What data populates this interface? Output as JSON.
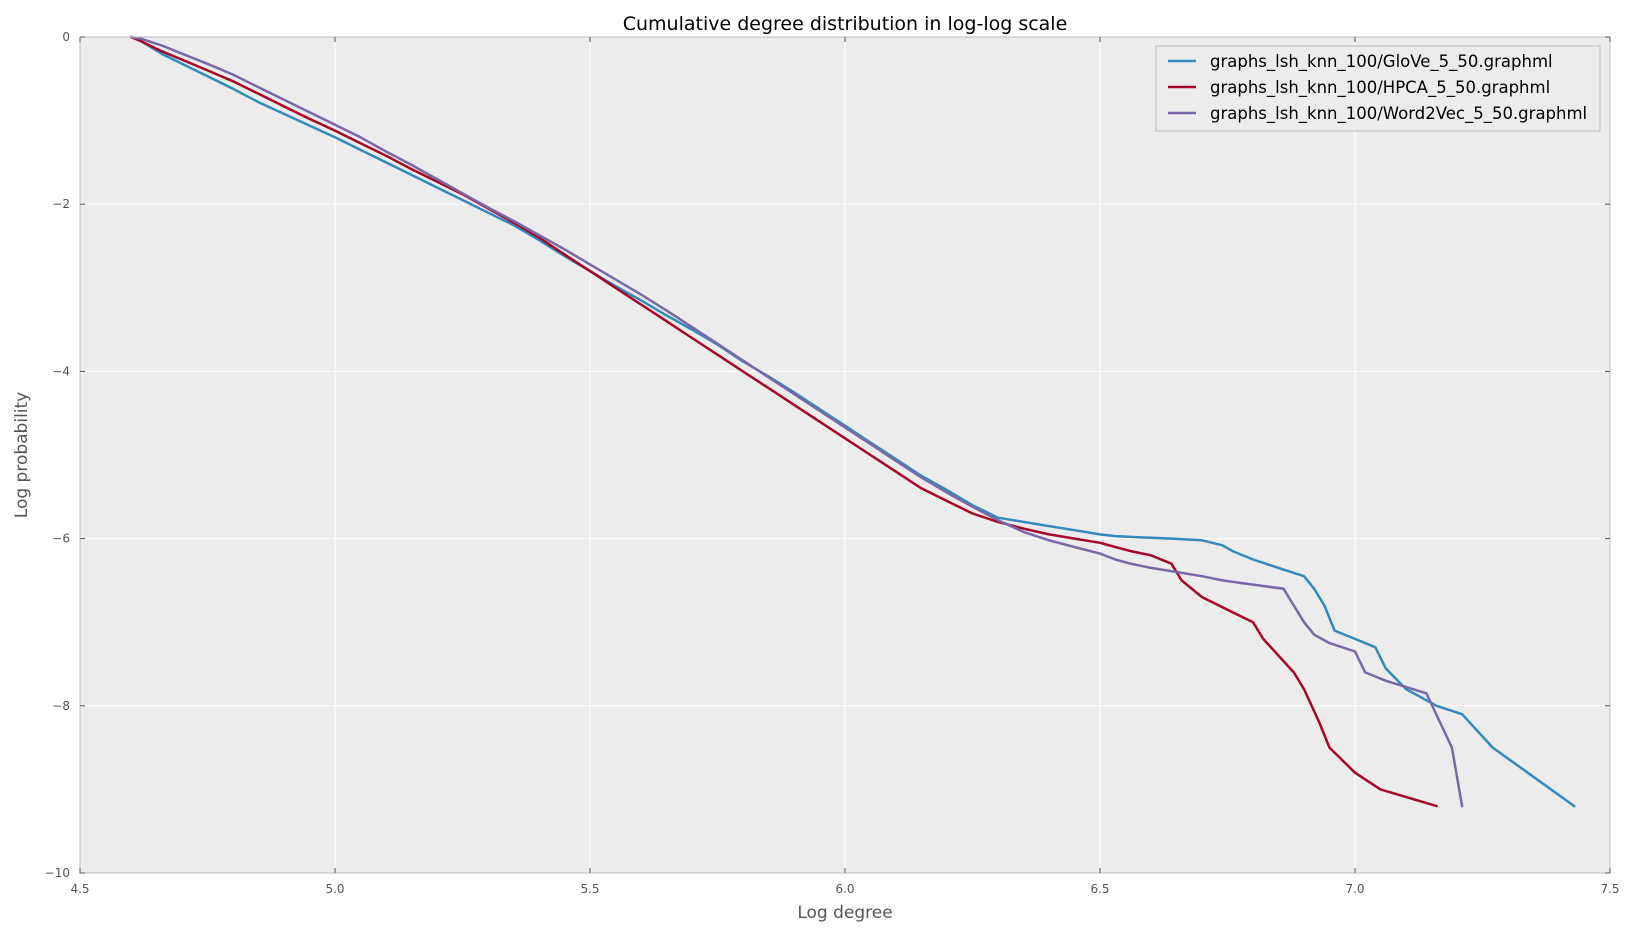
{
  "chart_data": {
    "type": "line",
    "title": "Cumulative degree distribution in log-log scale",
    "xlabel": "Log degree",
    "ylabel": "Log probability",
    "xlim": [
      4.5,
      7.5
    ],
    "ylim": [
      -10,
      0
    ],
    "xticks": [
      "4.5",
      "5.0",
      "5.5",
      "6.0",
      "6.5",
      "7.0",
      "7.5"
    ],
    "yticks": [
      "0",
      "−2",
      "−4",
      "−6",
      "−8",
      "−10"
    ],
    "grid": true,
    "background": "#ececec",
    "legend_position": "top-right",
    "series": [
      {
        "name": "graphs_lsh_knn_100/GloVe_5_50.graphml",
        "color": "#348abd",
        "x": [
          4.6,
          4.62,
          4.66,
          4.7,
          4.75,
          4.8,
          4.85,
          4.9,
          4.95,
          5.0,
          5.05,
          5.1,
          5.15,
          5.2,
          5.25,
          5.3,
          5.35,
          5.4,
          5.45,
          5.5,
          5.55,
          5.6,
          5.65,
          5.7,
          5.75,
          5.8,
          5.85,
          5.9,
          5.95,
          6.0,
          6.05,
          6.1,
          6.15,
          6.2,
          6.25,
          6.3,
          6.35,
          6.4,
          6.45,
          6.5,
          6.53,
          6.56,
          6.6,
          6.64,
          6.7,
          6.74,
          6.76,
          6.8,
          6.85,
          6.9,
          6.92,
          6.94,
          6.96,
          7.0,
          7.04,
          7.06,
          7.1,
          7.16,
          7.21,
          7.27,
          7.43
        ],
        "y": [
          0,
          -0.05,
          -0.2,
          -0.32,
          -0.47,
          -0.62,
          -0.78,
          -0.92,
          -1.06,
          -1.2,
          -1.35,
          -1.5,
          -1.65,
          -1.8,
          -1.95,
          -2.1,
          -2.25,
          -2.43,
          -2.62,
          -2.8,
          -2.98,
          -3.15,
          -3.33,
          -3.5,
          -3.68,
          -3.88,
          -4.06,
          -4.25,
          -4.45,
          -4.65,
          -4.85,
          -5.05,
          -5.25,
          -5.42,
          -5.6,
          -5.75,
          -5.8,
          -5.85,
          -5.9,
          -5.95,
          -5.97,
          -5.98,
          -5.99,
          -6.0,
          -6.02,
          -6.08,
          -6.15,
          -6.25,
          -6.35,
          -6.45,
          -6.6,
          -6.8,
          -7.1,
          -7.2,
          -7.3,
          -7.55,
          -7.8,
          -8.0,
          -8.1,
          -8.5,
          -9.2
        ]
      },
      {
        "name": "graphs_lsh_knn_100/HPCA_5_50.graphml",
        "color": "#a60628",
        "x": [
          4.6,
          4.62,
          4.66,
          4.7,
          4.75,
          4.8,
          4.85,
          4.9,
          4.95,
          5.0,
          5.05,
          5.1,
          5.15,
          5.2,
          5.25,
          5.3,
          5.35,
          5.4,
          5.45,
          5.5,
          5.55,
          5.6,
          5.65,
          5.7,
          5.75,
          5.8,
          5.85,
          5.9,
          5.95,
          6.0,
          6.05,
          6.1,
          6.15,
          6.2,
          6.25,
          6.3,
          6.35,
          6.4,
          6.45,
          6.5,
          6.53,
          6.56,
          6.6,
          6.64,
          6.66,
          6.7,
          6.75,
          6.8,
          6.82,
          6.85,
          6.88,
          6.9,
          6.93,
          6.95,
          7.0,
          7.05,
          7.16
        ],
        "y": [
          0,
          -0.05,
          -0.17,
          -0.27,
          -0.4,
          -0.53,
          -0.68,
          -0.83,
          -0.98,
          -1.12,
          -1.27,
          -1.42,
          -1.58,
          -1.73,
          -1.88,
          -2.05,
          -2.22,
          -2.4,
          -2.6,
          -2.8,
          -3.0,
          -3.2,
          -3.4,
          -3.6,
          -3.8,
          -4.0,
          -4.2,
          -4.4,
          -4.6,
          -4.8,
          -5.0,
          -5.2,
          -5.4,
          -5.55,
          -5.7,
          -5.8,
          -5.88,
          -5.95,
          -6.0,
          -6.05,
          -6.1,
          -6.15,
          -6.2,
          -6.3,
          -6.5,
          -6.7,
          -6.85,
          -7.0,
          -7.2,
          -7.4,
          -7.6,
          -7.8,
          -8.2,
          -8.5,
          -8.8,
          -9.0,
          -9.2
        ]
      },
      {
        "name": "graphs_lsh_knn_100/Word2Vec_5_50.graphml",
        "color": "#7a68a6",
        "x": [
          4.6,
          4.62,
          4.66,
          4.7,
          4.75,
          4.8,
          4.85,
          4.9,
          4.95,
          5.0,
          5.05,
          5.1,
          5.15,
          5.2,
          5.25,
          5.3,
          5.35,
          5.4,
          5.45,
          5.5,
          5.55,
          5.6,
          5.65,
          5.7,
          5.75,
          5.8,
          5.85,
          5.9,
          5.95,
          6.0,
          6.05,
          6.1,
          6.15,
          6.2,
          6.25,
          6.3,
          6.35,
          6.4,
          6.45,
          6.5,
          6.53,
          6.56,
          6.6,
          6.65,
          6.7,
          6.74,
          6.8,
          6.86,
          6.88,
          6.9,
          6.92,
          6.95,
          7.0,
          7.02,
          7.06,
          7.14,
          7.19,
          7.21
        ],
        "y": [
          0,
          -0.02,
          -0.1,
          -0.2,
          -0.32,
          -0.45,
          -0.6,
          -0.75,
          -0.9,
          -1.05,
          -1.2,
          -1.37,
          -1.53,
          -1.7,
          -1.87,
          -2.04,
          -2.2,
          -2.37,
          -2.54,
          -2.72,
          -2.9,
          -3.08,
          -3.27,
          -3.47,
          -3.67,
          -3.87,
          -4.07,
          -4.27,
          -4.47,
          -4.67,
          -4.87,
          -5.07,
          -5.27,
          -5.45,
          -5.62,
          -5.78,
          -5.92,
          -6.02,
          -6.1,
          -6.18,
          -6.25,
          -6.3,
          -6.35,
          -6.4,
          -6.45,
          -6.5,
          -6.55,
          -6.6,
          -6.8,
          -7.0,
          -7.15,
          -7.25,
          -7.35,
          -7.6,
          -7.7,
          -7.85,
          -8.5,
          -9.2
        ]
      }
    ]
  }
}
